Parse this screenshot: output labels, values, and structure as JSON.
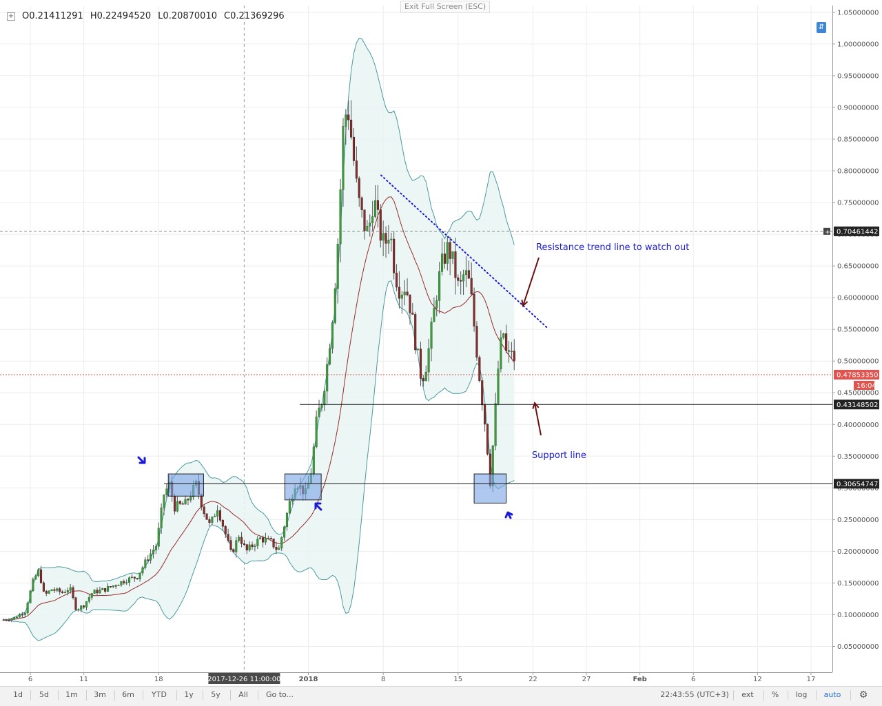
{
  "header": {
    "ohlc": [
      {
        "label": "O",
        "value": "0.21411291"
      },
      {
        "label": "H",
        "value": "0.22494520"
      },
      {
        "label": "L",
        "value": "0.20870010"
      },
      {
        "label": "C",
        "value": "0.21369296"
      }
    ],
    "exit_fullscreen": "Exit Full Screen (ESC)"
  },
  "chart_data": {
    "type": "candlestick",
    "ylim": [
      0.0,
      1.06
    ],
    "y_ticks": [
      "0.05000000",
      "0.10000000",
      "0.15000000",
      "0.20000000",
      "0.25000000",
      "0.30000000",
      "0.35000000",
      "0.40000000",
      "0.45000000",
      "0.50000000",
      "0.55000000",
      "0.60000000",
      "0.65000000",
      "0.70000000",
      "0.75000000",
      "0.80000000",
      "0.85000000",
      "0.90000000",
      "0.95000000",
      "1.00000000",
      "1.05000000"
    ],
    "x_ticks": [
      {
        "label": "6",
        "day": 0
      },
      {
        "label": "11",
        "day": 5
      },
      {
        "label": "18",
        "day": 12
      },
      {
        "label": "2018",
        "day": 26
      },
      {
        "label": "8",
        "day": 33
      },
      {
        "label": "15",
        "day": 40
      },
      {
        "label": "22",
        "day": 47
      },
      {
        "label": "27",
        "day": 52
      },
      {
        "label": "Feb",
        "day": 57
      },
      {
        "label": "6",
        "day": 62
      },
      {
        "label": "12",
        "day": 68
      },
      {
        "label": "17",
        "day": 73
      }
    ],
    "crosshair_x_label": "2017-12-26 11:00:00",
    "crosshair_day": 20,
    "price_labels": [
      {
        "value": 0.70461442,
        "text": "0.70461442",
        "style": "dark"
      },
      {
        "value": 0.4785335,
        "text": "0.47853350",
        "style": "red"
      },
      {
        "value": 0.43148502,
        "text": "0.43148502",
        "style": "dark"
      },
      {
        "value": 0.30654747,
        "text": "0.30654747",
        "style": "dark"
      }
    ],
    "countdown_label": "16:04",
    "horizontal_lines": [
      {
        "value": 0.43148502,
        "from_day": 25.2
      },
      {
        "value": 0.30654747,
        "from_day": 12.5
      }
    ],
    "trendline": {
      "from": {
        "day": 32.8,
        "value": 0.793
      },
      "to": {
        "day": 48.3,
        "value": 0.553
      }
    },
    "highlight_boxes": [
      {
        "from_day": 12.9,
        "to_day": 16.2,
        "from_value": 0.287,
        "to_value": 0.322
      },
      {
        "from_day": 23.8,
        "to_day": 27.2,
        "from_value": 0.281,
        "to_value": 0.322
      },
      {
        "from_day": 41.5,
        "to_day": 44.5,
        "from_value": 0.276,
        "to_value": 0.322
      }
    ],
    "annotations": [
      {
        "text": "Resistance trend line to watch out",
        "day": 47.3,
        "value": 0.675
      },
      {
        "text": "Support line",
        "day": 46.9,
        "value": 0.347
      }
    ],
    "close_series": [
      {
        "day": -2.5,
        "value": 0.092
      },
      {
        "day": -1.5,
        "value": 0.095
      },
      {
        "day": -0.5,
        "value": 0.105
      },
      {
        "day": 0.3,
        "value": 0.155
      },
      {
        "day": 0.8,
        "value": 0.17
      },
      {
        "day": 1.3,
        "value": 0.13
      },
      {
        "day": 2.0,
        "value": 0.14
      },
      {
        "day": 3.0,
        "value": 0.135
      },
      {
        "day": 3.7,
        "value": 0.142
      },
      {
        "day": 4.3,
        "value": 0.108
      },
      {
        "day": 5.0,
        "value": 0.115
      },
      {
        "day": 5.8,
        "value": 0.135
      },
      {
        "day": 7.0,
        "value": 0.14
      },
      {
        "day": 8.0,
        "value": 0.148
      },
      {
        "day": 9.0,
        "value": 0.155
      },
      {
        "day": 10.0,
        "value": 0.16
      },
      {
        "day": 11.0,
        "value": 0.19
      },
      {
        "day": 11.8,
        "value": 0.21
      },
      {
        "day": 12.5,
        "value": 0.29
      },
      {
        "day": 13.0,
        "value": 0.305
      },
      {
        "day": 13.5,
        "value": 0.27
      },
      {
        "day": 14.5,
        "value": 0.275
      },
      {
        "day": 15.5,
        "value": 0.305
      },
      {
        "day": 16.2,
        "value": 0.265
      },
      {
        "day": 16.8,
        "value": 0.24
      },
      {
        "day": 17.5,
        "value": 0.27
      },
      {
        "day": 18.2,
        "value": 0.23
      },
      {
        "day": 18.8,
        "value": 0.195
      },
      {
        "day": 19.5,
        "value": 0.225
      },
      {
        "day": 20.2,
        "value": 0.2
      },
      {
        "day": 20.8,
        "value": 0.21
      },
      {
        "day": 21.5,
        "value": 0.22
      },
      {
        "day": 22.5,
        "value": 0.215
      },
      {
        "day": 23.2,
        "value": 0.2
      },
      {
        "day": 23.8,
        "value": 0.245
      },
      {
        "day": 24.3,
        "value": 0.28
      },
      {
        "day": 24.8,
        "value": 0.31
      },
      {
        "day": 25.3,
        "value": 0.3
      },
      {
        "day": 25.8,
        "value": 0.29
      },
      {
        "day": 26.3,
        "value": 0.33
      },
      {
        "day": 26.8,
        "value": 0.41
      },
      {
        "day": 27.3,
        "value": 0.44
      },
      {
        "day": 27.8,
        "value": 0.5
      },
      {
        "day": 28.3,
        "value": 0.58
      },
      {
        "day": 28.8,
        "value": 0.7
      },
      {
        "day": 29.3,
        "value": 0.88
      },
      {
        "day": 29.7,
        "value": 0.9
      },
      {
        "day": 30.1,
        "value": 0.84
      },
      {
        "day": 30.6,
        "value": 0.76
      },
      {
        "day": 31.1,
        "value": 0.72
      },
      {
        "day": 31.6,
        "value": 0.7
      },
      {
        "day": 32.1,
        "value": 0.76
      },
      {
        "day": 32.6,
        "value": 0.71
      },
      {
        "day": 33.1,
        "value": 0.68
      },
      {
        "day": 33.6,
        "value": 0.71
      },
      {
        "day": 34.1,
        "value": 0.64
      },
      {
        "day": 34.6,
        "value": 0.61
      },
      {
        "day": 35.1,
        "value": 0.62
      },
      {
        "day": 35.6,
        "value": 0.58
      },
      {
        "day": 36.1,
        "value": 0.52
      },
      {
        "day": 36.6,
        "value": 0.47
      },
      {
        "day": 37.1,
        "value": 0.5
      },
      {
        "day": 37.6,
        "value": 0.56
      },
      {
        "day": 38.1,
        "value": 0.62
      },
      {
        "day": 38.6,
        "value": 0.66
      },
      {
        "day": 39.1,
        "value": 0.68
      },
      {
        "day": 39.6,
        "value": 0.65
      },
      {
        "day": 40.1,
        "value": 0.61
      },
      {
        "day": 40.6,
        "value": 0.64
      },
      {
        "day": 41.1,
        "value": 0.62
      },
      {
        "day": 41.6,
        "value": 0.54
      },
      {
        "day": 42.1,
        "value": 0.46
      },
      {
        "day": 42.6,
        "value": 0.39
      },
      {
        "day": 43.0,
        "value": 0.31
      },
      {
        "day": 43.4,
        "value": 0.4
      },
      {
        "day": 43.8,
        "value": 0.5
      },
      {
        "day": 44.2,
        "value": 0.55
      },
      {
        "day": 44.6,
        "value": 0.5
      },
      {
        "day": 45.0,
        "value": 0.52
      },
      {
        "day": 45.4,
        "value": 0.478
      }
    ]
  },
  "toolbar": {
    "ranges": [
      "1d",
      "5d",
      "1m",
      "3m",
      "6m",
      "YTD",
      "1y",
      "5y",
      "All"
    ],
    "goto": "Go to...",
    "time": "22:43:55 (UTC+3)",
    "ext": "ext",
    "percent": "%",
    "log": "log",
    "auto": "auto",
    "settings_icon": "gear-icon"
  }
}
